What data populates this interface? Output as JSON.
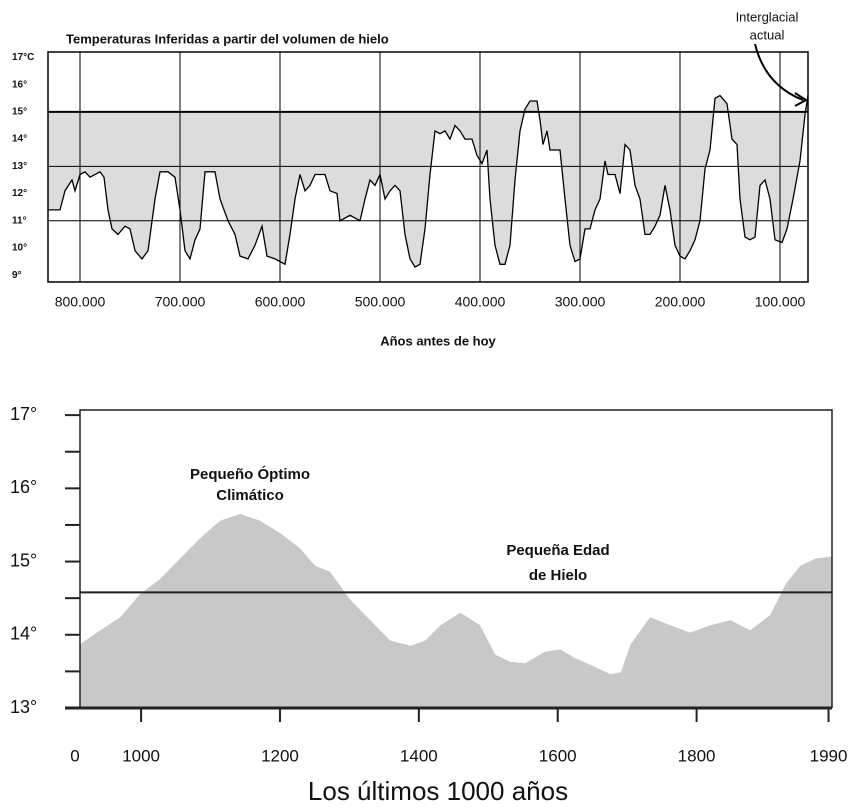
{
  "chart_data": [
    {
      "type": "area_band",
      "title": "Temperaturas Inferidas a partir del volumen de hielo",
      "x_label": "Años antes de hoy",
      "xlim": [
        832000,
        72000
      ],
      "ylim": [
        8.75,
        17.2
      ],
      "xticks": [
        {
          "value": 800000,
          "label": "800.000"
        },
        {
          "value": 700000,
          "label": "700.000"
        },
        {
          "value": 600000,
          "label": "600.000"
        },
        {
          "value": 500000,
          "label": "500.000"
        },
        {
          "value": 400000,
          "label": "400.000"
        },
        {
          "value": 300000,
          "label": "300.000"
        },
        {
          "value": 200000,
          "label": "200.000"
        },
        {
          "value": 100000,
          "label": "100.000"
        }
      ],
      "yticks": [
        {
          "value": 17,
          "label": "17°C"
        },
        {
          "value": 16,
          "label": "16°"
        },
        {
          "value": 15,
          "label": "15°"
        },
        {
          "value": 14,
          "label": "14°"
        },
        {
          "value": 13,
          "label": "13°"
        },
        {
          "value": 12,
          "label": "12°"
        },
        {
          "value": 11,
          "label": "11°"
        },
        {
          "value": 10,
          "label": "10°"
        },
        {
          "value": 9,
          "label": "9°"
        }
      ],
      "reference_line": 15,
      "hlines": [
        13,
        11
      ],
      "color": "#dcdcdc",
      "x": [
        832000,
        820000,
        815000,
        808000,
        805000,
        800000,
        795000,
        790000,
        780000,
        776000,
        772000,
        768000,
        762000,
        755000,
        750000,
        745000,
        738000,
        732000,
        725000,
        720000,
        712000,
        705000,
        700000,
        695000,
        690000,
        685000,
        680000,
        675000,
        665000,
        660000,
        652000,
        645000,
        640000,
        632000,
        625000,
        618000,
        613000,
        605000,
        595000,
        590000,
        585000,
        580000,
        575000,
        570000,
        565000,
        555000,
        550000,
        543000,
        540000,
        530000,
        520000,
        515000,
        510000,
        505000,
        500000,
        495000,
        490000,
        485000,
        480000,
        475000,
        470000,
        465000,
        460000,
        455000,
        450000,
        445000,
        440000,
        435000,
        430000,
        425000,
        420000,
        415000,
        408000,
        403000,
        398000,
        393000,
        390000,
        385000,
        380000,
        375000,
        370000,
        365000,
        360000,
        355000,
        350000,
        343000,
        340000,
        337000,
        333000,
        330000,
        320000,
        315000,
        310000,
        305000,
        300000,
        295000,
        290000,
        285000,
        280000,
        275000,
        272000,
        265000,
        260000,
        255000,
        250000,
        245000,
        240000,
        235000,
        230000,
        225000,
        220000,
        215000,
        210000,
        205000,
        200000,
        195000,
        190000,
        185000,
        180000,
        175000,
        170000,
        165000,
        160000,
        153000,
        148000,
        143000,
        140000,
        135000,
        130000,
        125000,
        120000,
        115000,
        110000,
        105000,
        98000,
        93000,
        87000,
        80000,
        75000,
        72000
      ],
      "values": [
        11.4,
        11.4,
        12.1,
        12.5,
        12.1,
        12.7,
        12.8,
        12.6,
        12.8,
        12.6,
        11.4,
        10.7,
        10.5,
        10.8,
        10.7,
        9.9,
        9.6,
        9.9,
        11.8,
        12.8,
        12.8,
        12.6,
        11.4,
        9.9,
        9.6,
        10.3,
        10.7,
        12.8,
        12.8,
        11.8,
        11.0,
        10.5,
        9.7,
        9.6,
        10.1,
        10.8,
        9.7,
        9.6,
        9.4,
        10.5,
        11.8,
        12.7,
        12.1,
        12.3,
        12.7,
        12.7,
        12.1,
        12.0,
        11.0,
        11.2,
        11.0,
        11.8,
        12.5,
        12.3,
        12.7,
        11.8,
        12.1,
        12.3,
        12.1,
        10.5,
        9.6,
        9.3,
        9.4,
        10.7,
        12.7,
        14.3,
        14.2,
        14.3,
        14.0,
        14.5,
        14.3,
        14.0,
        14.0,
        13.4,
        13.1,
        13.6,
        11.8,
        10.1,
        9.4,
        9.4,
        10.1,
        12.5,
        14.3,
        15.1,
        15.4,
        15.4,
        14.7,
        13.8,
        14.3,
        13.6,
        13.6,
        11.8,
        10.1,
        9.5,
        9.6,
        10.7,
        10.7,
        11.4,
        11.8,
        13.2,
        12.7,
        12.7,
        12.0,
        13.8,
        13.6,
        12.3,
        11.8,
        10.5,
        10.5,
        10.8,
        11.2,
        12.3,
        11.4,
        10.1,
        9.7,
        9.6,
        9.9,
        10.3,
        11.0,
        12.9,
        13.6,
        15.5,
        15.6,
        15.3,
        14.0,
        13.8,
        11.8,
        10.4,
        10.3,
        10.4,
        12.3,
        12.5,
        11.8,
        10.3,
        10.2,
        10.7,
        11.8,
        13.2,
        14.9,
        15.6
      ],
      "annotations": [
        {
          "lines": [
            "Interglacial",
            "actual"
          ]
        }
      ]
    },
    {
      "type": "area",
      "x_label": "Los últimos 1000 años",
      "x_origin_label": "0",
      "xlim": [
        912,
        1995
      ],
      "ylim": [
        13.0,
        17.07
      ],
      "xticks": [
        1000,
        1200,
        1400,
        1600,
        1800,
        1990
      ],
      "yticks": [
        {
          "value": 13,
          "label": "13°"
        },
        {
          "value": 14,
          "label": "14°"
        },
        {
          "value": 15,
          "label": "15°"
        },
        {
          "value": 16,
          "label": "16°"
        },
        {
          "value": 17,
          "label": "17°"
        }
      ],
      "yminor_ticks": [
        13.5,
        14.5,
        15.5,
        16.5
      ],
      "reference_line": 14.58,
      "color": "#c8c8c8",
      "x": [
        912,
        941,
        970,
        998,
        1027,
        1056,
        1085,
        1114,
        1143,
        1171,
        1200,
        1229,
        1251,
        1272,
        1301,
        1330,
        1359,
        1388,
        1409,
        1431,
        1460,
        1488,
        1510,
        1532,
        1553,
        1582,
        1604,
        1625,
        1647,
        1676,
        1691,
        1705,
        1733,
        1762,
        1791,
        1820,
        1849,
        1877,
        1906,
        1928,
        1949,
        1971,
        1995
      ],
      "values": [
        13.87,
        14.06,
        14.24,
        14.55,
        14.76,
        15.04,
        15.32,
        15.56,
        15.65,
        15.56,
        15.39,
        15.18,
        14.94,
        14.86,
        14.48,
        14.2,
        13.92,
        13.85,
        13.92,
        14.13,
        14.3,
        14.13,
        13.73,
        13.63,
        13.61,
        13.77,
        13.8,
        13.68,
        13.59,
        13.46,
        13.49,
        13.87,
        14.24,
        14.13,
        14.03,
        14.13,
        14.2,
        14.06,
        14.27,
        14.69,
        14.94,
        15.04,
        15.07
      ],
      "annotations": [
        {
          "lines": [
            "Pequeño Óptimo",
            "Climático"
          ]
        },
        {
          "lines": [
            "Pequeña Edad",
            "de Hielo"
          ]
        }
      ]
    }
  ]
}
